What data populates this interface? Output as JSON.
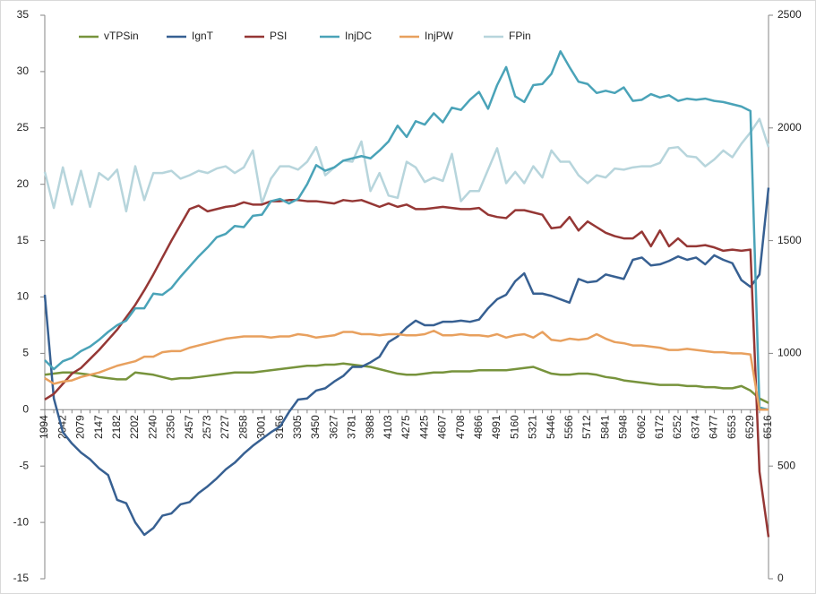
{
  "chart_data": {
    "type": "line",
    "categories": [
      "1994",
      null,
      "2042",
      null,
      "2079",
      null,
      "2147",
      null,
      "2182",
      null,
      "2202",
      null,
      "2240",
      null,
      "2350",
      null,
      "2457",
      null,
      "2573",
      null,
      "2727",
      null,
      "2858",
      null,
      "3001",
      null,
      "3156",
      null,
      "3305",
      null,
      "3450",
      null,
      "3627",
      null,
      "3781",
      null,
      "3988",
      null,
      "4103",
      null,
      "4275",
      null,
      "4425",
      null,
      "4607",
      null,
      "4708",
      null,
      "4866",
      null,
      "4991",
      null,
      "5160",
      null,
      "5321",
      null,
      "5446",
      null,
      "5566",
      null,
      "5712",
      null,
      "5841",
      null,
      "5948",
      null,
      "6062",
      null,
      "6172",
      null,
      "6252",
      null,
      "6374",
      null,
      "6477",
      null,
      "6553",
      null,
      "6529",
      null,
      "6516"
    ],
    "series": [
      {
        "name": "vTPSin",
        "color": "#77933c",
        "values": [
          3.1,
          3.2,
          3.3,
          3.3,
          3.2,
          3.1,
          2.9,
          2.8,
          2.7,
          2.7,
          3.3,
          3.2,
          3.1,
          2.9,
          2.7,
          2.8,
          2.8,
          2.9,
          3.0,
          3.1,
          3.2,
          3.3,
          3.3,
          3.3,
          3.4,
          3.5,
          3.6,
          3.7,
          3.8,
          3.9,
          3.9,
          4.0,
          4.0,
          4.1,
          4.0,
          3.9,
          3.8,
          3.6,
          3.4,
          3.2,
          3.1,
          3.1,
          3.2,
          3.3,
          3.3,
          3.4,
          3.4,
          3.4,
          3.5,
          3.5,
          3.5,
          3.5,
          3.6,
          3.7,
          3.8,
          3.5,
          3.2,
          3.1,
          3.1,
          3.2,
          3.2,
          3.1,
          2.9,
          2.8,
          2.6,
          2.5,
          2.4,
          2.3,
          2.2,
          2.2,
          2.2,
          2.1,
          2.1,
          2.0,
          2.0,
          1.9,
          1.9,
          2.1,
          1.7,
          1.0,
          0.6
        ]
      },
      {
        "name": "IgnT",
        "color": "#376092",
        "values": [
          10.2,
          1.0,
          -2.0,
          -3.0,
          -3.8,
          -4.4,
          -5.2,
          -5.8,
          -8.0,
          -8.3,
          -10.0,
          -11.1,
          -10.5,
          -9.4,
          -9.2,
          -8.4,
          -8.2,
          -7.4,
          -6.8,
          -6.1,
          -5.3,
          -4.7,
          -3.9,
          -3.2,
          -2.6,
          -2.0,
          -1.5,
          -0.2,
          0.9,
          1.0,
          1.7,
          1.9,
          2.5,
          3.0,
          3.8,
          3.8,
          4.2,
          4.7,
          6.0,
          6.5,
          7.3,
          7.9,
          7.5,
          7.5,
          7.8,
          7.8,
          7.9,
          7.8,
          8.0,
          9.0,
          9.8,
          10.2,
          11.4,
          12.1,
          10.3,
          10.3,
          10.1,
          9.8,
          9.5,
          11.6,
          11.3,
          11.4,
          12.0,
          11.8,
          11.6,
          13.3,
          13.5,
          12.8,
          12.9,
          13.2,
          13.6,
          13.3,
          13.5,
          12.9,
          13.7,
          13.3,
          13.0,
          11.5,
          10.9,
          12.0,
          19.7
        ]
      },
      {
        "name": "PSI",
        "color": "#953735",
        "values": [
          0.9,
          1.4,
          2.3,
          3.2,
          3.7,
          4.5,
          5.3,
          6.2,
          7.1,
          8.2,
          9.3,
          10.6,
          12.0,
          13.5,
          15.0,
          16.4,
          17.8,
          18.1,
          17.6,
          17.8,
          18.0,
          18.1,
          18.4,
          18.2,
          18.2,
          18.5,
          18.5,
          18.6,
          18.6,
          18.5,
          18.5,
          18.4,
          18.3,
          18.6,
          18.5,
          18.6,
          18.3,
          18.0,
          18.3,
          18.0,
          18.2,
          17.8,
          17.8,
          17.9,
          18.0,
          17.9,
          17.8,
          17.8,
          17.9,
          17.3,
          17.1,
          17.0,
          17.7,
          17.7,
          17.5,
          17.3,
          16.1,
          16.2,
          17.1,
          15.9,
          16.7,
          16.2,
          15.7,
          15.4,
          15.2,
          15.2,
          15.8,
          14.5,
          15.9,
          14.5,
          15.2,
          14.5,
          14.5,
          14.6,
          14.4,
          14.1,
          14.2,
          14.1,
          14.2,
          -5.5,
          -11.3
        ]
      },
      {
        "name": "InjDC",
        "color": "#4aa3b8",
        "values": [
          4.4,
          3.6,
          4.3,
          4.6,
          5.2,
          5.6,
          6.2,
          6.9,
          7.5,
          7.9,
          9.0,
          9.0,
          10.3,
          10.2,
          10.8,
          11.8,
          12.7,
          13.6,
          14.4,
          15.3,
          15.6,
          16.3,
          16.2,
          17.2,
          17.3,
          18.5,
          18.7,
          18.3,
          18.7,
          20.0,
          21.7,
          21.2,
          21.5,
          22.1,
          22.3,
          22.5,
          22.3,
          23.0,
          23.8,
          25.2,
          24.2,
          25.6,
          25.3,
          26.3,
          25.5,
          26.8,
          26.6,
          27.5,
          28.2,
          26.7,
          28.8,
          30.4,
          27.8,
          27.3,
          28.8,
          28.9,
          29.8,
          31.8,
          30.4,
          29.1,
          28.9,
          28.1,
          28.3,
          28.1,
          28.6,
          27.4,
          27.5,
          28.0,
          27.7,
          27.9,
          27.4,
          27.6,
          27.5,
          27.6,
          27.4,
          27.3,
          27.1,
          26.9,
          26.5,
          0.2,
          0.0
        ]
      },
      {
        "name": "InjPW",
        "color": "#e8a05e",
        "values": [
          2.8,
          2.3,
          2.5,
          2.6,
          2.9,
          3.1,
          3.3,
          3.6,
          3.9,
          4.1,
          4.3,
          4.7,
          4.7,
          5.1,
          5.2,
          5.2,
          5.5,
          5.7,
          5.9,
          6.1,
          6.3,
          6.4,
          6.5,
          6.5,
          6.5,
          6.4,
          6.5,
          6.5,
          6.7,
          6.6,
          6.4,
          6.5,
          6.6,
          6.9,
          6.9,
          6.7,
          6.7,
          6.6,
          6.7,
          6.7,
          6.6,
          6.6,
          6.7,
          7.0,
          6.6,
          6.6,
          6.7,
          6.6,
          6.6,
          6.5,
          6.7,
          6.4,
          6.6,
          6.7,
          6.4,
          6.9,
          6.2,
          6.1,
          6.3,
          6.2,
          6.3,
          6.7,
          6.3,
          6.0,
          5.9,
          5.7,
          5.7,
          5.6,
          5.5,
          5.3,
          5.3,
          5.4,
          5.3,
          5.2,
          5.1,
          5.1,
          5.0,
          5.0,
          4.9,
          0.0,
          0.0
        ]
      },
      {
        "name": "FPin",
        "color": "#b7d5dc",
        "axis": "y2",
        "values": [
          1805,
          1645,
          1825,
          1660,
          1810,
          1650,
          1800,
          1770,
          1815,
          1630,
          1830,
          1680,
          1800,
          1800,
          1810,
          1775,
          1790,
          1810,
          1800,
          1820,
          1830,
          1800,
          1825,
          1900,
          1665,
          1775,
          1830,
          1830,
          1815,
          1850,
          1915,
          1790,
          1825,
          1855,
          1850,
          1940,
          1720,
          1800,
          1700,
          1690,
          1850,
          1825,
          1760,
          1780,
          1765,
          1885,
          1675,
          1720,
          1720,
          1815,
          1910,
          1755,
          1805,
          1755,
          1830,
          1780,
          1900,
          1850,
          1850,
          1790,
          1755,
          1790,
          1780,
          1820,
          1815,
          1825,
          1830,
          1830,
          1845,
          1910,
          1915,
          1875,
          1870,
          1830,
          1860,
          1900,
          1870,
          1930,
          1980,
          2040,
          1915
        ]
      }
    ],
    "ylim": [
      -15,
      35
    ],
    "yticks": [
      -15,
      -10,
      -5,
      0,
      5,
      10,
      15,
      20,
      25,
      30,
      35
    ],
    "y2lim": [
      0,
      2500
    ],
    "y2ticks": [
      0,
      500,
      1000,
      1500,
      2000,
      2500
    ],
    "grid": false,
    "legend": "top"
  }
}
